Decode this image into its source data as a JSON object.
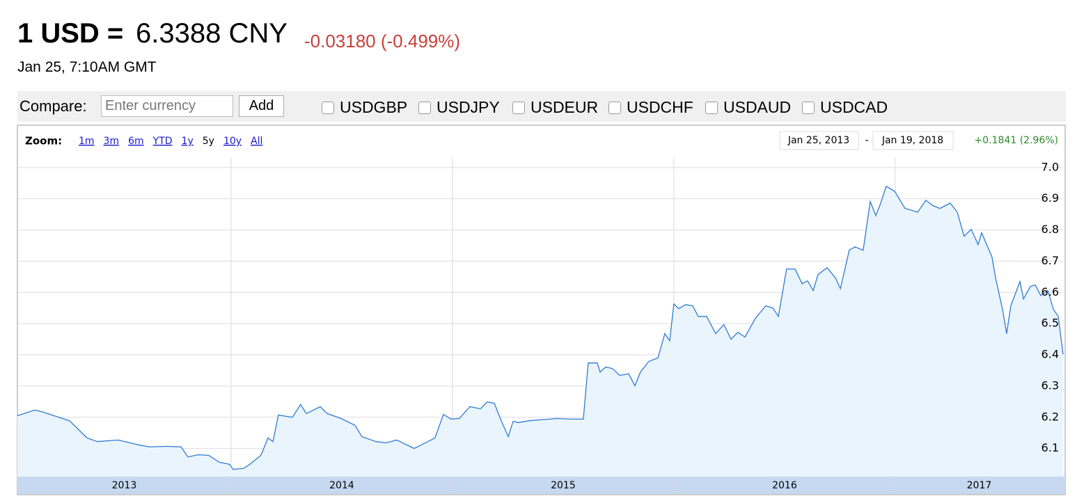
{
  "header": {
    "pair": "1 USD =",
    "rate": "6.3388 CNY",
    "change": "-0.03180 (-0.499%)",
    "timestamp": "Jan 25, 7:10AM GMT"
  },
  "compare": {
    "label": "Compare:",
    "placeholder": "Enter currency",
    "button": "Add",
    "options": [
      "USDGBP",
      "USDJPY",
      "USDEUR",
      "USDCHF",
      "USDAUD",
      "USDCAD"
    ]
  },
  "zoom": {
    "label": "Zoom:",
    "options": [
      "1m",
      "3m",
      "6m",
      "YTD",
      "1y",
      "5y",
      "10y",
      "All"
    ],
    "active": "5y"
  },
  "range": {
    "start": "Jan 25, 2013",
    "separator": "-",
    "end": "Jan 19, 2018",
    "change": "+0.1841 (2.96%)"
  },
  "chart_data": {
    "type": "area",
    "color": "#2f7bd1",
    "fill": "#e9f4fd",
    "x": [
      2013.035,
      2013.113,
      2013.145,
      2013.27,
      2013.349,
      2013.396,
      2013.491,
      2013.585,
      2013.632,
      2013.711,
      2013.774,
      2013.805,
      2013.852,
      2013.899,
      2013.947,
      2013.994,
      2014.009,
      2014.057,
      2014.088,
      2014.135,
      2014.167,
      2014.189,
      2014.214,
      2014.277,
      2014.314,
      2014.34,
      2014.403,
      2014.434,
      2014.497,
      2014.56,
      2014.591,
      2014.654,
      2014.701,
      2014.748,
      2014.827,
      2014.858,
      2014.921,
      2014.959,
      2014.994,
      2015.031,
      2015.079,
      2015.126,
      2015.157,
      2015.189,
      2015.22,
      2015.252,
      2015.274,
      2015.299,
      2015.346,
      2015.44,
      2015.472,
      2015.535,
      2015.591,
      2015.613,
      2015.654,
      2015.667,
      2015.692,
      2015.723,
      2015.755,
      2015.796,
      2015.824,
      2015.849,
      2015.887,
      2015.928,
      2015.959,
      2015.981,
      2016.0,
      2016.022,
      2016.053,
      2016.085,
      2016.11,
      2016.148,
      2016.189,
      2016.226,
      2016.258,
      2016.289,
      2016.321,
      2016.368,
      2016.415,
      2016.447,
      2016.472,
      2016.509,
      2016.547,
      2016.579,
      2016.604,
      2016.629,
      2016.651,
      2016.692,
      2016.73,
      2016.752,
      2016.792,
      2016.818,
      2016.855,
      2016.887,
      2016.912,
      2016.934,
      2016.959,
      2016.997,
      2017.044,
      2017.069,
      2017.101,
      2017.138,
      2017.17,
      2017.201,
      2017.248,
      2017.28,
      2017.311,
      2017.343,
      2017.374,
      2017.39,
      2017.437,
      2017.453,
      2017.484,
      2017.503,
      2017.522,
      2017.563,
      2017.579,
      2017.61,
      2017.632,
      2017.657,
      2017.689,
      2017.714,
      2017.736,
      2017.758
    ],
    "values": [
      6.205,
      6.223,
      6.218,
      6.189,
      6.134,
      6.122,
      6.127,
      6.111,
      6.105,
      6.107,
      6.105,
      6.073,
      6.08,
      6.078,
      6.056,
      6.049,
      6.033,
      6.036,
      6.051,
      6.078,
      6.134,
      6.122,
      6.207,
      6.2,
      6.241,
      6.212,
      6.234,
      6.212,
      6.196,
      6.174,
      6.138,
      6.122,
      6.118,
      6.127,
      6.1,
      6.111,
      6.134,
      6.209,
      6.194,
      6.196,
      6.234,
      6.227,
      6.249,
      6.245,
      6.189,
      6.138,
      6.187,
      6.183,
      6.189,
      6.194,
      6.196,
      6.194,
      6.194,
      6.374,
      6.374,
      6.345,
      6.361,
      6.356,
      6.334,
      6.339,
      6.301,
      6.345,
      6.379,
      6.39,
      6.468,
      6.445,
      6.563,
      6.548,
      6.561,
      6.557,
      6.523,
      6.523,
      6.468,
      6.497,
      6.45,
      6.472,
      6.457,
      6.517,
      6.557,
      6.55,
      6.523,
      6.675,
      6.675,
      6.628,
      6.637,
      6.606,
      6.657,
      6.679,
      6.646,
      6.612,
      6.735,
      6.746,
      6.735,
      6.891,
      6.846,
      6.886,
      6.94,
      6.924,
      6.869,
      6.864,
      6.857,
      6.895,
      6.878,
      6.869,
      6.886,
      6.857,
      6.78,
      6.802,
      6.753,
      6.791,
      6.713,
      6.646,
      6.546,
      6.468,
      6.557,
      6.635,
      6.579,
      6.619,
      6.624,
      6.59,
      6.606,
      6.546,
      6.523,
      6.401
    ],
    "xlim": [
      2013.035,
      2017.758
    ],
    "xticks": [
      2013,
      2014,
      2015,
      2016,
      2017
    ],
    "ylim": [
      6.01,
      7.033
    ],
    "yticks": [
      6.1,
      6.2,
      6.3,
      6.4,
      6.5,
      6.6,
      6.7,
      6.8,
      6.9,
      {
        "value": 7,
        "label": "7.0"
      }
    ],
    "grid": true
  }
}
